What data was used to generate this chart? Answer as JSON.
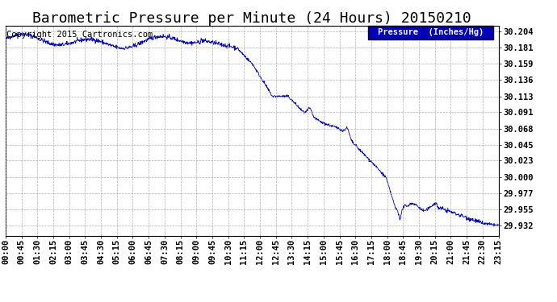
{
  "title": "Barometric Pressure per Minute (24 Hours) 20150210",
  "copyright": "Copyright 2015 Cartronics.com",
  "legend_label": "Pressure  (Inches/Hg)",
  "line_color": "#0000cc",
  "background_color": "#ffffff",
  "grid_color": "#999999",
  "yticks": [
    29.932,
    29.955,
    29.977,
    30.0,
    30.023,
    30.045,
    30.068,
    30.091,
    30.113,
    30.136,
    30.159,
    30.181,
    30.204
  ],
  "ylim": [
    29.918,
    30.212
  ],
  "xtick_labels": [
    "00:00",
    "00:45",
    "01:30",
    "02:15",
    "03:00",
    "03:45",
    "04:30",
    "05:15",
    "06:00",
    "06:45",
    "07:30",
    "08:15",
    "09:00",
    "09:45",
    "10:30",
    "11:15",
    "12:00",
    "12:45",
    "13:30",
    "14:15",
    "15:00",
    "15:45",
    "16:30",
    "17:15",
    "18:00",
    "18:45",
    "19:30",
    "20:15",
    "21:00",
    "21:45",
    "22:30",
    "23:15"
  ],
  "legend_bg": "#0000bb",
  "legend_text_color": "#ffffff",
  "title_fontsize": 13,
  "tick_fontsize": 7.5,
  "copyright_fontsize": 7.5
}
